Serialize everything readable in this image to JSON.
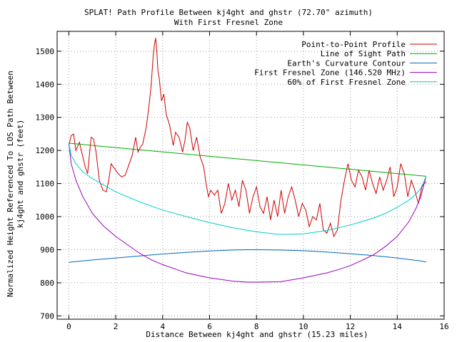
{
  "chart_data": {
    "type": "line",
    "title": "SPLAT! Path Profile Between kj4ght and ghstr (72.70° azimuth)",
    "subtitle": "With First Fresnel Zone",
    "xlabel": "Distance Between kj4ght and ghstr (15.23 miles)",
    "ylabel": [
      "Normalized Height Referenced To LOS Path Between",
      "kj4ght and ghstr (feet)"
    ],
    "xlim": [
      -0.5,
      16
    ],
    "ylim": [
      690,
      1560
    ],
    "x_ticks": [
      0,
      2,
      4,
      6,
      8,
      10,
      12,
      14,
      16
    ],
    "y_ticks": [
      700,
      800,
      900,
      1000,
      1100,
      1200,
      1300,
      1400,
      1500
    ],
    "grid": true,
    "legend_position": "top-right",
    "series": [
      {
        "name": "Point-to-Point Profile",
        "color": "#cc0000",
        "x": [
          0,
          0.1,
          0.2,
          0.3,
          0.45,
          0.6,
          0.7,
          0.8,
          0.95,
          1.05,
          1.15,
          1.3,
          1.45,
          1.6,
          1.7,
          1.8,
          1.95,
          2.1,
          2.25,
          2.4,
          2.55,
          2.7,
          2.85,
          2.95,
          3.05,
          3.15,
          3.3,
          3.4,
          3.5,
          3.6,
          3.65,
          3.7,
          3.75,
          3.8,
          3.85,
          3.95,
          4.05,
          4.15,
          4.3,
          4.45,
          4.55,
          4.7,
          4.85,
          4.95,
          5.05,
          5.15,
          5.3,
          5.45,
          5.6,
          5.75,
          5.85,
          5.95,
          6.05,
          6.2,
          6.35,
          6.5,
          6.65,
          6.8,
          6.95,
          7.1,
          7.25,
          7.4,
          7.55,
          7.7,
          7.85,
          8.0,
          8.15,
          8.3,
          8.45,
          8.6,
          8.75,
          8.9,
          9.05,
          9.2,
          9.35,
          9.5,
          9.65,
          9.8,
          9.95,
          10.1,
          10.25,
          10.4,
          10.55,
          10.7,
          10.85,
          11.0,
          11.15,
          11.3,
          11.45,
          11.6,
          11.75,
          11.9,
          12.05,
          12.2,
          12.35,
          12.5,
          12.65,
          12.8,
          12.95,
          13.1,
          13.25,
          13.4,
          13.55,
          13.7,
          13.85,
          14.0,
          14.15,
          14.3,
          14.45,
          14.6,
          14.75,
          14.9,
          15.05,
          15.15,
          15.23
        ],
        "y": [
          1215,
          1245,
          1250,
          1200,
          1225,
          1180,
          1150,
          1130,
          1240,
          1235,
          1200,
          1110,
          1080,
          1075,
          1110,
          1160,
          1145,
          1130,
          1120,
          1125,
          1155,
          1185,
          1240,
          1195,
          1210,
          1220,
          1270,
          1325,
          1390,
          1490,
          1520,
          1540,
          1500,
          1440,
          1420,
          1350,
          1370,
          1310,
          1275,
          1215,
          1255,
          1240,
          1195,
          1230,
          1285,
          1270,
          1200,
          1240,
          1180,
          1150,
          1100,
          1060,
          1080,
          1065,
          1080,
          1010,
          1040,
          1100,
          1050,
          1080,
          1030,
          1110,
          1080,
          1010,
          1060,
          1090,
          1030,
          1010,
          1060,
          990,
          1050,
          1000,
          1080,
          1010,
          1060,
          1090,
          1050,
          1000,
          1040,
          1020,
          970,
          1000,
          990,
          1040,
          960,
          950,
          980,
          940,
          960,
          1050,
          1110,
          1160,
          1110,
          1090,
          1140,
          1120,
          1080,
          1140,
          1100,
          1070,
          1120,
          1080,
          1110,
          1150,
          1060,
          1090,
          1160,
          1130,
          1060,
          1110,
          1080,
          1040,
          1090,
          1100,
          1105
        ]
      },
      {
        "name": "Line of Sight Path",
        "color": "#00aa00",
        "x": [
          0,
          15.23
        ],
        "y": [
          1222,
          1122
        ]
      },
      {
        "name": "Earth's Curvature Contour",
        "color": "#0066bb",
        "x": [
          0,
          1,
          2,
          3,
          4,
          5,
          6,
          7,
          7.615,
          8,
          9,
          10,
          11,
          12,
          13,
          14,
          15,
          15.23
        ],
        "y": [
          862,
          869,
          875,
          881,
          887,
          892,
          896,
          899,
          900,
          900,
          899,
          897,
          893,
          888,
          882,
          875,
          866,
          863
        ]
      },
      {
        "name": "First Fresnel Zone (146.520 MHz)",
        "color": "#9900bb",
        "x": [
          0,
          0.1,
          0.3,
          0.6,
          1.0,
          1.5,
          2.0,
          2.5,
          3.0,
          3.5,
          4.0,
          5.0,
          6.0,
          7.0,
          7.615,
          8.0,
          9.0,
          10.0,
          11.0,
          11.5,
          12.0,
          12.5,
          13.0,
          13.5,
          14.0,
          14.5,
          14.8,
          15.0,
          15.13,
          15.23
        ],
        "y": [
          1222,
          1160,
          1110,
          1060,
          1010,
          970,
          940,
          915,
          890,
          870,
          855,
          830,
          815,
          805,
          802,
          802,
          803,
          815,
          830,
          840,
          852,
          868,
          885,
          910,
          940,
          985,
          1025,
          1060,
          1095,
          1122
        ]
      },
      {
        "name": "60% of First Fresnel Zone",
        "color": "#00cccc",
        "x": [
          0,
          0.1,
          0.3,
          0.6,
          1.0,
          1.5,
          2.0,
          2.5,
          3.0,
          4.0,
          5.0,
          6.0,
          7.0,
          8.0,
          9.0,
          10.0,
          11.0,
          12.0,
          12.5,
          13.0,
          13.5,
          14.0,
          14.5,
          14.8,
          15.0,
          15.13,
          15.23
        ],
        "y": [
          1222,
          1185,
          1160,
          1135,
          1115,
          1095,
          1075,
          1060,
          1045,
          1020,
          1000,
          982,
          966,
          954,
          946,
          948,
          958,
          975,
          985,
          996,
          1010,
          1028,
          1050,
          1068,
          1085,
          1105,
          1122
        ]
      }
    ]
  }
}
